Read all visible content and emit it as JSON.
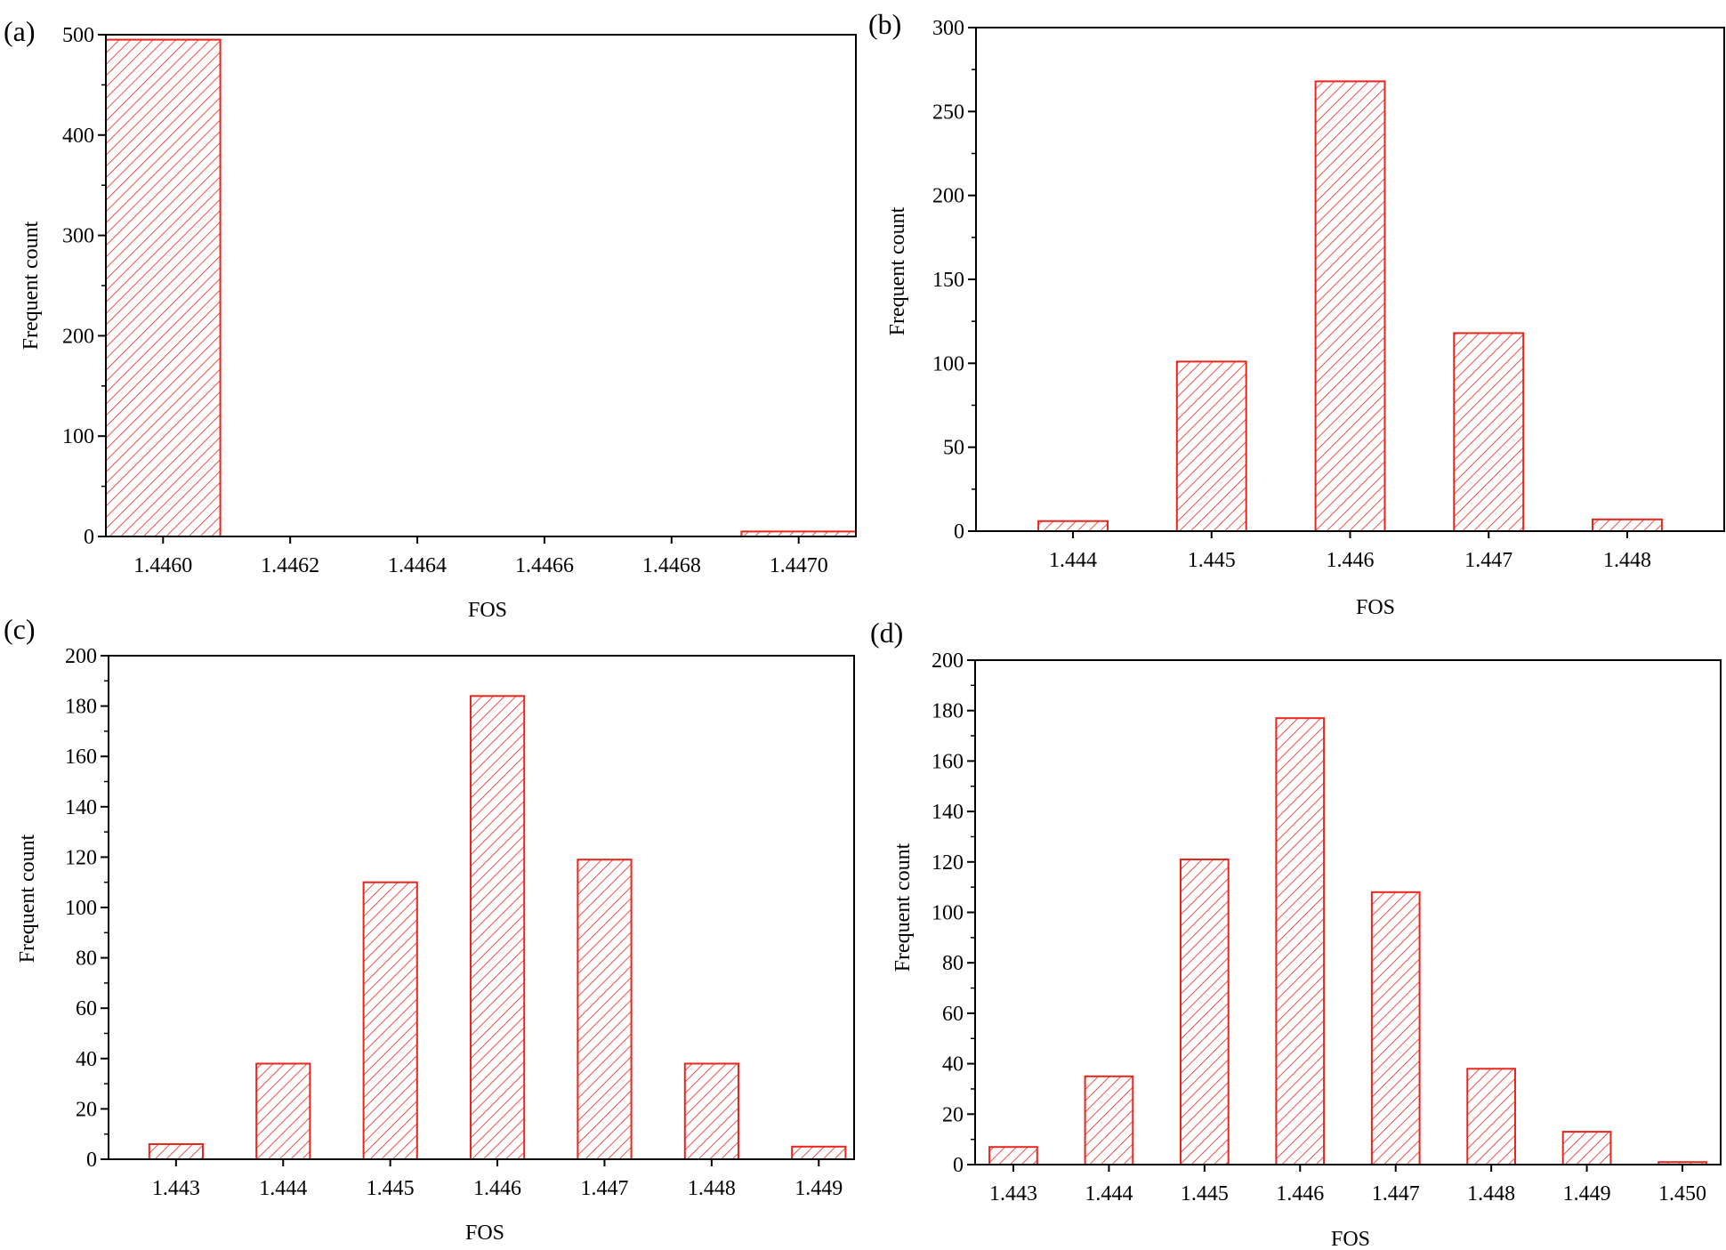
{
  "colors": {
    "bar": "#e8261d",
    "axis": "#000000"
  },
  "chart_data": [
    {
      "panel_label": "(a)",
      "type": "bar",
      "xlabel": "FOS",
      "ylabel": "Frequent count",
      "ylim": [
        0,
        500
      ],
      "yticks": [
        "0",
        "100",
        "200",
        "300",
        "400",
        "500"
      ],
      "xlim": [
        1.44591,
        1.44709
      ],
      "xticks": [
        {
          "value": 1.446,
          "label": "1.4460"
        },
        {
          "value": 1.4462,
          "label": "1.4462"
        },
        {
          "value": 1.4464,
          "label": "1.4464"
        },
        {
          "value": 1.4466,
          "label": "1.4466"
        },
        {
          "value": 1.4468,
          "label": "1.4468"
        },
        {
          "value": 1.447,
          "label": "1.4470"
        }
      ],
      "bars": [
        {
          "x": 1.446,
          "value": 495
        },
        {
          "x": 1.447,
          "value": 5
        }
      ],
      "bar_width": 0.00018
    },
    {
      "panel_label": "(b)",
      "type": "bar",
      "xlabel": "FOS",
      "ylabel": "Frequent count",
      "ylim": [
        0,
        300
      ],
      "yticks": [
        "0",
        "50",
        "100",
        "150",
        "200",
        "250",
        "300"
      ],
      "xlim": [
        1.4433,
        1.4487
      ],
      "xticks": [
        {
          "value": 1.444,
          "label": "1.444"
        },
        {
          "value": 1.445,
          "label": "1.445"
        },
        {
          "value": 1.446,
          "label": "1.446"
        },
        {
          "value": 1.447,
          "label": "1.447"
        },
        {
          "value": 1.448,
          "label": "1.448"
        }
      ],
      "bars": [
        {
          "x": 1.444,
          "value": 6
        },
        {
          "x": 1.445,
          "value": 101
        },
        {
          "x": 1.446,
          "value": 268
        },
        {
          "x": 1.447,
          "value": 118
        },
        {
          "x": 1.448,
          "value": 7
        }
      ],
      "bar_width": 0.0005
    },
    {
      "panel_label": "(c)",
      "type": "bar",
      "xlabel": "FOS",
      "ylabel": "Frequent count",
      "ylim": [
        0,
        200
      ],
      "yticks": [
        "0",
        "20",
        "40",
        "60",
        "80",
        "100",
        "120",
        "140",
        "160",
        "180",
        "200"
      ],
      "xlim": [
        1.44237,
        1.44933
      ],
      "xticks": [
        {
          "value": 1.443,
          "label": "1.443"
        },
        {
          "value": 1.444,
          "label": "1.444"
        },
        {
          "value": 1.445,
          "label": "1.445"
        },
        {
          "value": 1.446,
          "label": "1.446"
        },
        {
          "value": 1.447,
          "label": "1.447"
        },
        {
          "value": 1.448,
          "label": "1.448"
        },
        {
          "value": 1.449,
          "label": "1.449"
        }
      ],
      "bars": [
        {
          "x": 1.443,
          "value": 6
        },
        {
          "x": 1.444,
          "value": 38
        },
        {
          "x": 1.445,
          "value": 110
        },
        {
          "x": 1.446,
          "value": 184
        },
        {
          "x": 1.447,
          "value": 119
        },
        {
          "x": 1.448,
          "value": 38
        },
        {
          "x": 1.449,
          "value": 5
        }
      ],
      "bar_width": 0.0005
    },
    {
      "panel_label": "(d)",
      "type": "bar",
      "xlabel": "FOS",
      "ylabel": "Frequent count",
      "ylim": [
        0,
        200
      ],
      "yticks": [
        "0",
        "20",
        "40",
        "60",
        "80",
        "100",
        "120",
        "140",
        "160",
        "180",
        "200"
      ],
      "xlim": [
        1.4426,
        1.4504
      ],
      "xticks": [
        {
          "value": 1.443,
          "label": "1.443"
        },
        {
          "value": 1.444,
          "label": "1.444"
        },
        {
          "value": 1.445,
          "label": "1.445"
        },
        {
          "value": 1.446,
          "label": "1.446"
        },
        {
          "value": 1.447,
          "label": "1.447"
        },
        {
          "value": 1.448,
          "label": "1.448"
        },
        {
          "value": 1.449,
          "label": "1.449"
        },
        {
          "value": 1.45,
          "label": "1.450"
        }
      ],
      "bars": [
        {
          "x": 1.443,
          "value": 7
        },
        {
          "x": 1.444,
          "value": 35
        },
        {
          "x": 1.445,
          "value": 121
        },
        {
          "x": 1.446,
          "value": 177
        },
        {
          "x": 1.447,
          "value": 108
        },
        {
          "x": 1.448,
          "value": 38
        },
        {
          "x": 1.449,
          "value": 13
        },
        {
          "x": 1.45,
          "value": 1
        }
      ],
      "bar_width": 0.0005
    }
  ]
}
